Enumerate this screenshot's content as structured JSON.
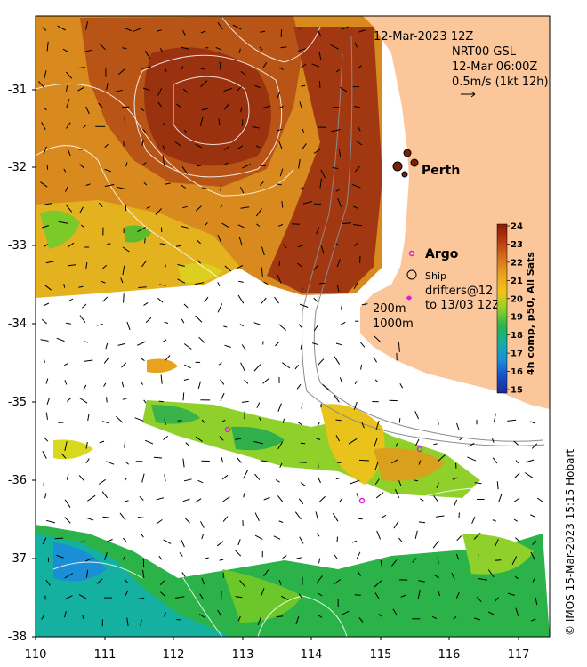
{
  "map": {
    "date_label": "12-Mar-2023 12Z",
    "product_line1": "NRT00 GSL",
    "product_line2": "12-Mar 06:00Z",
    "product_line3": "0.5m/s (1kt 12h)",
    "city": "Perth",
    "argo_label": "Argo",
    "ship_label": "Ship",
    "drifters_line1": "drifters@12",
    "drifters_line2": "to 13/03 12Z",
    "isobath_200": "200m",
    "isobath_1000": "1000m",
    "credit": "© IMOS 15-Mar-2023 15:15 Hobart",
    "lon_ticks": [
      "110",
      "111",
      "112",
      "113",
      "114",
      "115",
      "116",
      "117"
    ],
    "lat_ticks": [
      "-31",
      "-32",
      "-33",
      "-34",
      "-35",
      "-36",
      "-37",
      "-38"
    ]
  },
  "colorbar": {
    "label": "4h comp, p50, All Sats",
    "ticks": [
      "24",
      "23",
      "22",
      "21",
      "20",
      "19",
      "18",
      "17",
      "16",
      "15"
    ],
    "colors": [
      "#8b1a08",
      "#b83a10",
      "#d8701c",
      "#e9a21e",
      "#f2c41a",
      "#dcdc20",
      "#8fd12a",
      "#2bb34a",
      "#14b0a0",
      "#1a8fd6",
      "#1850c8",
      "#1a2a90"
    ]
  }
}
